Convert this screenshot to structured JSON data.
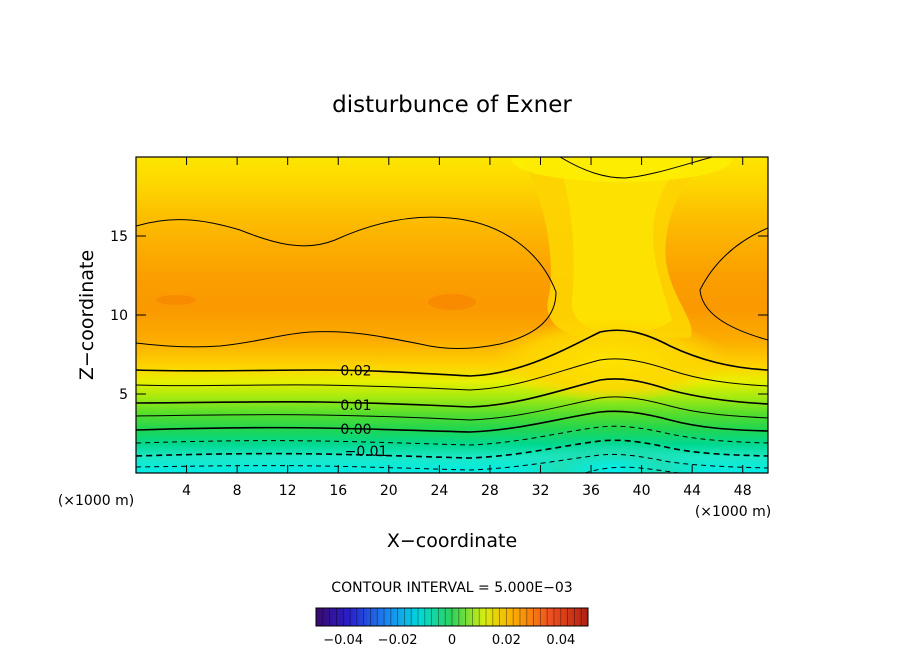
{
  "chart_data": {
    "type": "contour",
    "title": "disturbunce of Exner",
    "xlabel": "X−coordinate",
    "ylabel": "Z−coordinate",
    "x_unit_left": "(×1000 m)",
    "x_unit_right": "(×1000 m)",
    "xlim": [
      0,
      50
    ],
    "ylim": [
      0,
      20
    ],
    "x_ticks": [
      4,
      8,
      12,
      16,
      20,
      24,
      28,
      32,
      36,
      40,
      44,
      48
    ],
    "x_tick_labels": [
      "4",
      "8",
      "12",
      "16",
      "20",
      "24",
      "28",
      "32",
      "36",
      "40",
      "44",
      "48"
    ],
    "y_ticks": [
      5,
      10,
      15
    ],
    "y_tick_labels": [
      "5",
      "10",
      "15"
    ],
    "contour_labels": [
      {
        "text": "0.02",
        "x": 17.4,
        "z": 6.5
      },
      {
        "text": "0.01",
        "x": 17.4,
        "z": 4.3
      },
      {
        "text": "0.00",
        "x": 17.4,
        "z": 2.8
      },
      {
        "text": "−0.01",
        "x": 18.2,
        "z": 1.4
      }
    ],
    "contour_interval_text": "CONTOUR INTERVAL = 5.000E−03",
    "colorbar": {
      "range": [
        -0.05,
        0.05
      ],
      "ticks": [
        -0.04,
        -0.02,
        0,
        0.02,
        0.04
      ],
      "tick_labels": [
        "−0.04",
        "−0.02",
        "0",
        "0.02",
        "0.04"
      ]
    },
    "colors": {
      "band_peak": "#fa9600",
      "band_high": "#fcac00",
      "band_mid_high": "#fdc400",
      "band_mid": "#fde000",
      "band_low": "#00e4e4"
    }
  }
}
